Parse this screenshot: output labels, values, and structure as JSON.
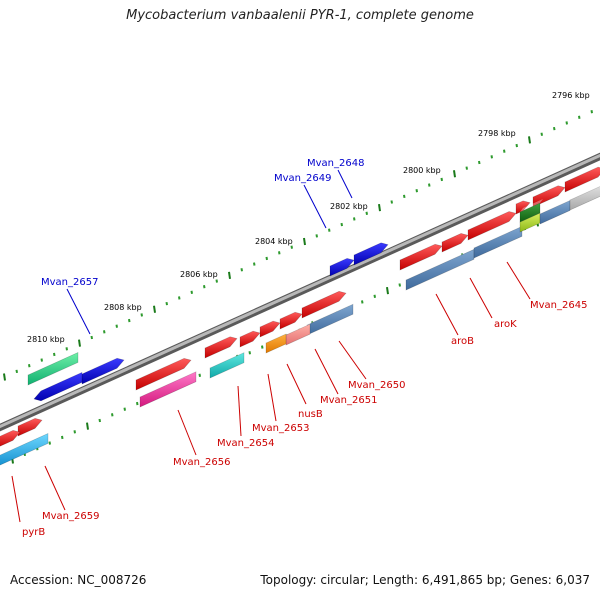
{
  "title": "Mycobacterium vanbaalenii PYR-1, complete genome",
  "footer": {
    "accession": "Accession: NC_008726",
    "summary": "Topology: circular; Length: 6,491,865 bp; Genes: 6,037"
  },
  "colors": {
    "backbone": "#8a8a8a",
    "tick_major": "#1a7a1a",
    "tick_minor": "#2e9a2e",
    "label_blue": "#0000cc",
    "label_red": "#cc0000"
  },
  "scale_labels": [
    "2796 kbp",
    "2798 kbp",
    "2800 kbp",
    "2802 kbp",
    "2804 kbp",
    "2806 kbp",
    "2808 kbp",
    "2810 kbp"
  ],
  "genes": [
    {
      "label": "Mvan_2648",
      "label_color": "blue"
    },
    {
      "label": "Mvan_2649",
      "label_color": "blue"
    },
    {
      "label": "Mvan_2657",
      "label_color": "blue"
    },
    {
      "label": "Mvan_2645",
      "label_color": "red"
    },
    {
      "label": "aroK",
      "label_color": "red"
    },
    {
      "label": "aroB",
      "label_color": "red"
    },
    {
      "label": "Mvan_2650",
      "label_color": "red"
    },
    {
      "label": "Mvan_2651",
      "label_color": "red"
    },
    {
      "label": "nusB",
      "label_color": "red"
    },
    {
      "label": "Mvan_2653",
      "label_color": "red"
    },
    {
      "label": "Mvan_2654",
      "label_color": "red"
    },
    {
      "label": "Mvan_2656",
      "label_color": "red"
    },
    {
      "label": "Mvan_2659",
      "label_color": "red"
    },
    {
      "label": "pyrB",
      "label_color": "red"
    }
  ]
}
